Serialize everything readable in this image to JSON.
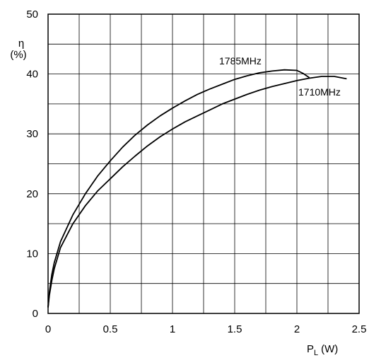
{
  "chart_data": {
    "type": "line",
    "xlabel_main": "P",
    "xlabel_sub": "L",
    "xlabel_unit": "(W)",
    "ylabel_symbol": "η",
    "ylabel_unit": "(%)",
    "xlim": [
      0,
      2.5
    ],
    "ylim": [
      0,
      50
    ],
    "x_ticks": [
      "0",
      "0.5",
      "1",
      "1.5",
      "2",
      "2.5"
    ],
    "y_ticks": [
      "0",
      "10",
      "20",
      "30",
      "40",
      "50"
    ],
    "x_ticks_values": [
      0,
      0.5,
      1,
      1.5,
      2,
      2.5
    ],
    "y_ticks_values": [
      0,
      10,
      20,
      30,
      40,
      50
    ],
    "grid": true,
    "series": [
      {
        "name": "1785MHz",
        "x": [
          0,
          0.01,
          0.03,
          0.05,
          0.1,
          0.2,
          0.3,
          0.4,
          0.5,
          0.6,
          0.7,
          0.8,
          0.9,
          1.0,
          1.1,
          1.2,
          1.3,
          1.4,
          1.5,
          1.6,
          1.7,
          1.8,
          1.9,
          2.0,
          2.05,
          2.1
        ],
        "y": [
          1,
          3.5,
          6.5,
          8.5,
          12,
          16.5,
          20,
          23,
          25.5,
          27.8,
          29.8,
          31.5,
          33,
          34.3,
          35.5,
          36.6,
          37.5,
          38.3,
          39.1,
          39.7,
          40.2,
          40.5,
          40.7,
          40.6,
          40.1,
          39.4
        ]
      },
      {
        "name": "1710MHz",
        "x": [
          0,
          0.01,
          0.03,
          0.05,
          0.1,
          0.2,
          0.3,
          0.4,
          0.5,
          0.6,
          0.7,
          0.8,
          0.9,
          1.0,
          1.1,
          1.2,
          1.3,
          1.4,
          1.5,
          1.6,
          1.7,
          1.8,
          1.9,
          2.0,
          2.1,
          2.2,
          2.3,
          2.4
        ],
        "y": [
          1,
          3,
          5.5,
          7.5,
          11,
          15,
          18,
          20.5,
          22.5,
          24.5,
          26.3,
          28,
          29.5,
          30.8,
          32,
          33,
          34,
          35,
          35.8,
          36.6,
          37.3,
          37.9,
          38.4,
          38.9,
          39.3,
          39.6,
          39.6,
          39.2
        ]
      }
    ]
  }
}
